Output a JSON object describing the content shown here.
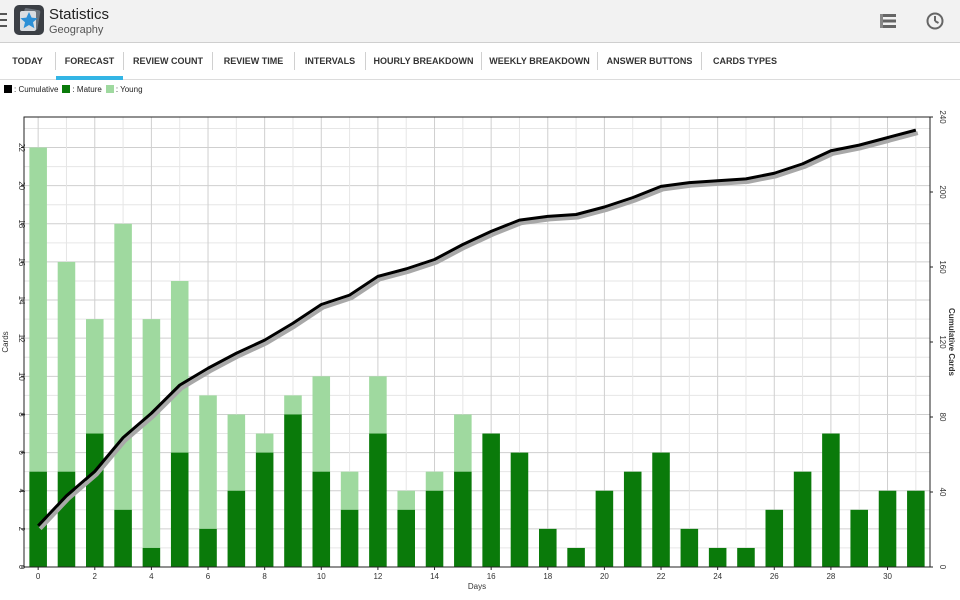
{
  "app": {
    "title": "Statistics",
    "subtitle": "Geography"
  },
  "icons": {
    "menu": "menu-icon",
    "app": "star-deck-icon",
    "list": "list-view-icon",
    "history": "clock-icon"
  },
  "tabs": [
    {
      "label": "TODAY",
      "selected": false
    },
    {
      "label": "FORECAST",
      "selected": true
    },
    {
      "label": "REVIEW COUNT",
      "selected": false
    },
    {
      "label": "REVIEW TIME",
      "selected": false
    },
    {
      "label": "INTERVALS",
      "selected": false
    },
    {
      "label": "HOURLY BREAKDOWN",
      "selected": false
    },
    {
      "label": "WEEKLY BREAKDOWN",
      "selected": false
    },
    {
      "label": "ANSWER BUTTONS",
      "selected": false
    },
    {
      "label": "CARDS TYPES",
      "selected": false
    }
  ],
  "colors": {
    "accent": "#33b5e5",
    "mature": "#0a7a0a",
    "young": "#9fd99f",
    "cumulative": "#000000"
  },
  "chart_data": {
    "type": "bar",
    "stacked": true,
    "x": [
      0,
      1,
      2,
      3,
      4,
      5,
      6,
      7,
      8,
      9,
      10,
      11,
      12,
      13,
      14,
      15,
      16,
      17,
      18,
      19,
      20,
      21,
      22,
      23,
      24,
      25,
      26,
      27,
      28,
      29,
      30,
      31
    ],
    "series": [
      {
        "name": "Mature",
        "values": [
          5,
          5,
          7,
          3,
          1,
          6,
          2,
          4,
          6,
          8,
          5,
          3,
          7,
          3,
          4,
          5,
          7,
          6,
          2,
          1,
          4,
          5,
          6,
          2,
          1,
          1,
          3,
          5,
          7,
          3,
          4,
          4
        ]
      },
      {
        "name": "Young",
        "values": [
          17,
          11,
          6,
          15,
          12,
          9,
          7,
          4,
          1,
          1,
          5,
          2,
          3,
          1,
          1,
          3,
          0,
          0,
          0,
          0,
          0,
          0,
          0,
          0,
          0,
          0,
          0,
          0,
          0,
          0,
          0,
          0
        ]
      }
    ],
    "line": {
      "name": "Cumulative",
      "axis": "right",
      "values": [
        22,
        38,
        51,
        69,
        82,
        97,
        106,
        114,
        121,
        130,
        140,
        145,
        155,
        159,
        164,
        172,
        179,
        185,
        187,
        188,
        192,
        197,
        203,
        205,
        206,
        207,
        210,
        215,
        222,
        225,
        229,
        233
      ]
    },
    "legend": [
      "Cumulative",
      "Mature",
      "Young"
    ],
    "legend_labels": [
      ": Cumulative",
      ": Mature",
      ": Young"
    ],
    "legend_position": "top-left",
    "xlabel": "Days",
    "ylabel": "Cards",
    "y2label": "Cumulative Cards",
    "xlim": [
      -0.5,
      31.5
    ],
    "ylim": [
      0,
      23.6
    ],
    "y2lim": [
      0,
      240
    ],
    "xticks": [
      0,
      2,
      4,
      6,
      8,
      10,
      12,
      14,
      16,
      18,
      20,
      22,
      24,
      26,
      28,
      30
    ],
    "yticks": [
      0,
      2,
      4,
      6,
      8,
      10,
      12,
      14,
      16,
      18,
      20,
      22
    ],
    "y2ticks": [
      0,
      40,
      80,
      120,
      160,
      200,
      240
    ],
    "grid": true
  }
}
